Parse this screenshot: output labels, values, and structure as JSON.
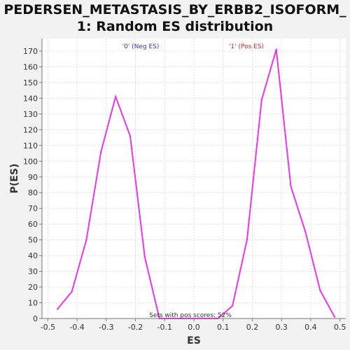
{
  "chart_data": {
    "type": "line",
    "title": "PEDERSEN_METASTASIS_BY_ERBB2_ISOFORM_\n1: Random ES distribution",
    "xlabel": "ES",
    "ylabel": "P(ES)",
    "xlim": [
      -0.52,
      0.52
    ],
    "ylim": [
      0,
      178
    ],
    "x_ticks": [
      "-0.5",
      "-0.4",
      "-0.3",
      "-0.2",
      "-0.1",
      "0.0",
      "0.1",
      "0.2",
      "0.3",
      "0.4",
      "0.5"
    ],
    "y_ticks": [
      "0",
      "10",
      "20",
      "30",
      "40",
      "50",
      "60",
      "70",
      "80",
      "90",
      "100",
      "110",
      "120",
      "130",
      "140",
      "150",
      "160",
      "170"
    ],
    "grid": true,
    "series": [
      {
        "color": "#ee33ee",
        "x": [
          -0.467,
          -0.418,
          -0.368,
          -0.318,
          -0.268,
          -0.218,
          -0.168,
          -0.118,
          -0.068,
          -0.018,
          0.032,
          0.082,
          0.132,
          0.182,
          0.232,
          0.282,
          0.332,
          0.382,
          0.432,
          0.482
        ],
        "y": [
          6,
          17,
          50,
          106,
          141,
          116,
          39,
          0,
          0,
          0,
          0,
          0,
          8,
          50,
          139,
          171,
          84,
          55,
          18,
          1
        ]
      }
    ],
    "annotations": {
      "neg_label": "'0' (Neg ES)",
      "pos_label": "'1' (Pos ES)",
      "footer": "Sets with pos scores: 52%"
    },
    "colors": {
      "neg_label": "#3333cc",
      "pos_label": "#dd2222",
      "line": "#ee33ee"
    }
  }
}
